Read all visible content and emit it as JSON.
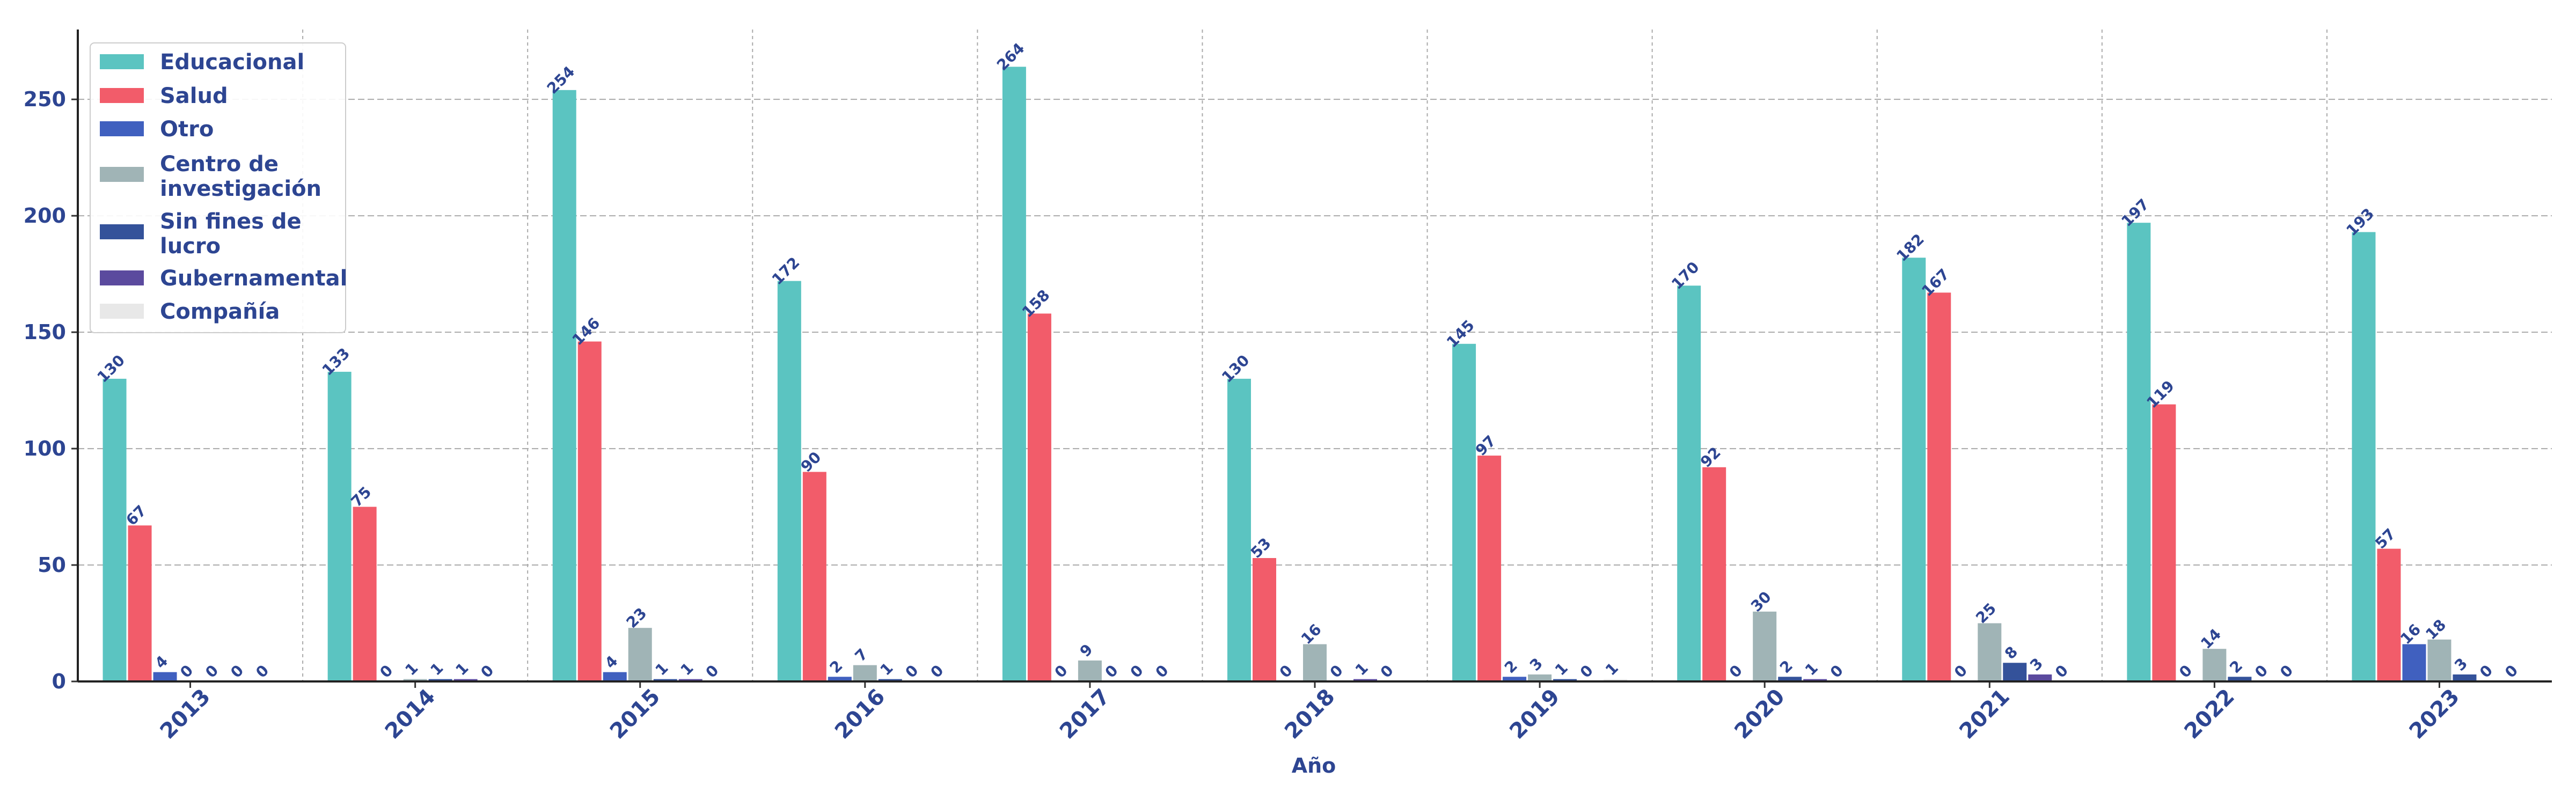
{
  "chart_data": {
    "type": "bar",
    "title": "",
    "xlabel": "Año",
    "ylabel": "",
    "ylim": [
      0,
      280
    ],
    "yticks": [
      0,
      50,
      100,
      150,
      200,
      250
    ],
    "grid": true,
    "legend_position": "top-left",
    "categories": [
      "2013",
      "2014",
      "2015",
      "2016",
      "2017",
      "2018",
      "2019",
      "2020",
      "2021",
      "2022",
      "2023"
    ],
    "series": [
      {
        "name": "Educacional",
        "color": "#5bc4c1",
        "values": [
          130,
          133,
          254,
          172,
          264,
          130,
          145,
          170,
          182,
          197,
          193
        ]
      },
      {
        "name": "Salud",
        "color": "#f25c6a",
        "values": [
          67,
          75,
          146,
          90,
          158,
          53,
          97,
          92,
          167,
          119,
          57
        ]
      },
      {
        "name": "Otro",
        "color": "#4060bf",
        "values": [
          4,
          0,
          4,
          2,
          0,
          0,
          2,
          0,
          0,
          0,
          16
        ]
      },
      {
        "name": "Centro de investigación",
        "color": "#a0b4b6",
        "values": [
          0,
          1,
          23,
          7,
          9,
          16,
          3,
          30,
          25,
          14,
          18
        ]
      },
      {
        "name": "Sin fines de lucro",
        "color": "#34529a",
        "values": [
          0,
          1,
          1,
          1,
          0,
          0,
          1,
          2,
          8,
          2,
          3
        ]
      },
      {
        "name": "Gubernamental",
        "color": "#5b4a9e",
        "values": [
          0,
          1,
          1,
          0,
          0,
          1,
          0,
          1,
          3,
          0,
          0
        ]
      },
      {
        "name": "Compañía",
        "color": "#e8e8e8",
        "values": [
          0,
          0,
          0,
          0,
          0,
          0,
          1,
          0,
          0,
          0,
          0
        ]
      }
    ]
  },
  "colors": {
    "axis_text": "#2d4592",
    "grid": "#aaaaaa"
  }
}
